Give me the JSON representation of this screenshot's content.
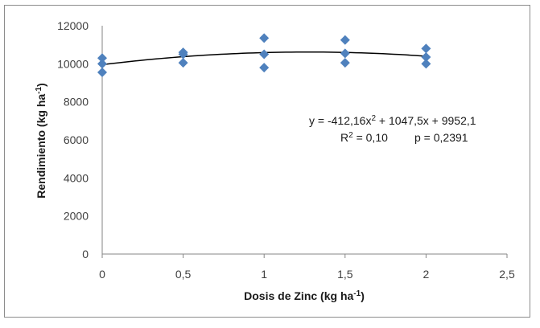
{
  "chart_data": {
    "type": "scatter",
    "xlabel": {
      "text": "Dosis de Zinc (kg ha",
      "sup": "-1",
      "close": ")"
    },
    "ylabel": {
      "text": "Rendimiento (kg ha",
      "sup": "-1",
      "close": ")"
    },
    "xlim": [
      0,
      2.5
    ],
    "ylim": [
      0,
      12000
    ],
    "x_ticks": [
      "0",
      "0,5",
      "1",
      "1,5",
      "2",
      "2,5"
    ],
    "y_ticks": [
      "0",
      "2000",
      "4000",
      "6000",
      "8000",
      "10000",
      "12000"
    ],
    "points": [
      {
        "x": 0,
        "y": 10300
      },
      {
        "x": 0,
        "y": 10000
      },
      {
        "x": 0,
        "y": 9550
      },
      {
        "x": 0.5,
        "y": 10600
      },
      {
        "x": 0.5,
        "y": 10500
      },
      {
        "x": 0.5,
        "y": 10050
      },
      {
        "x": 1,
        "y": 11350
      },
      {
        "x": 1,
        "y": 10500
      },
      {
        "x": 1,
        "y": 9800
      },
      {
        "x": 1.5,
        "y": 11250
      },
      {
        "x": 1.5,
        "y": 10550
      },
      {
        "x": 1.5,
        "y": 10050
      },
      {
        "x": 2,
        "y": 10800
      },
      {
        "x": 2,
        "y": 10350
      },
      {
        "x": 2,
        "y": 10000
      }
    ],
    "trendline": {
      "type": "polynomial",
      "a": -412.16,
      "b": 1047.5,
      "c": 9952.1,
      "x_range": [
        0,
        2
      ]
    },
    "equation": {
      "part1": "y = -412,16x",
      "sup": "2",
      "part2": " + 1047,5x + 9952,1"
    },
    "stats": {
      "r2_label": "R",
      "r2_sup": "2",
      "r2_value": " = 0,10",
      "p_text": "p = 0,2391"
    },
    "colors": {
      "marker": "#4F81BD",
      "trendline": "#000000",
      "axis": "#868686"
    },
    "grid": false,
    "legend": "none"
  }
}
